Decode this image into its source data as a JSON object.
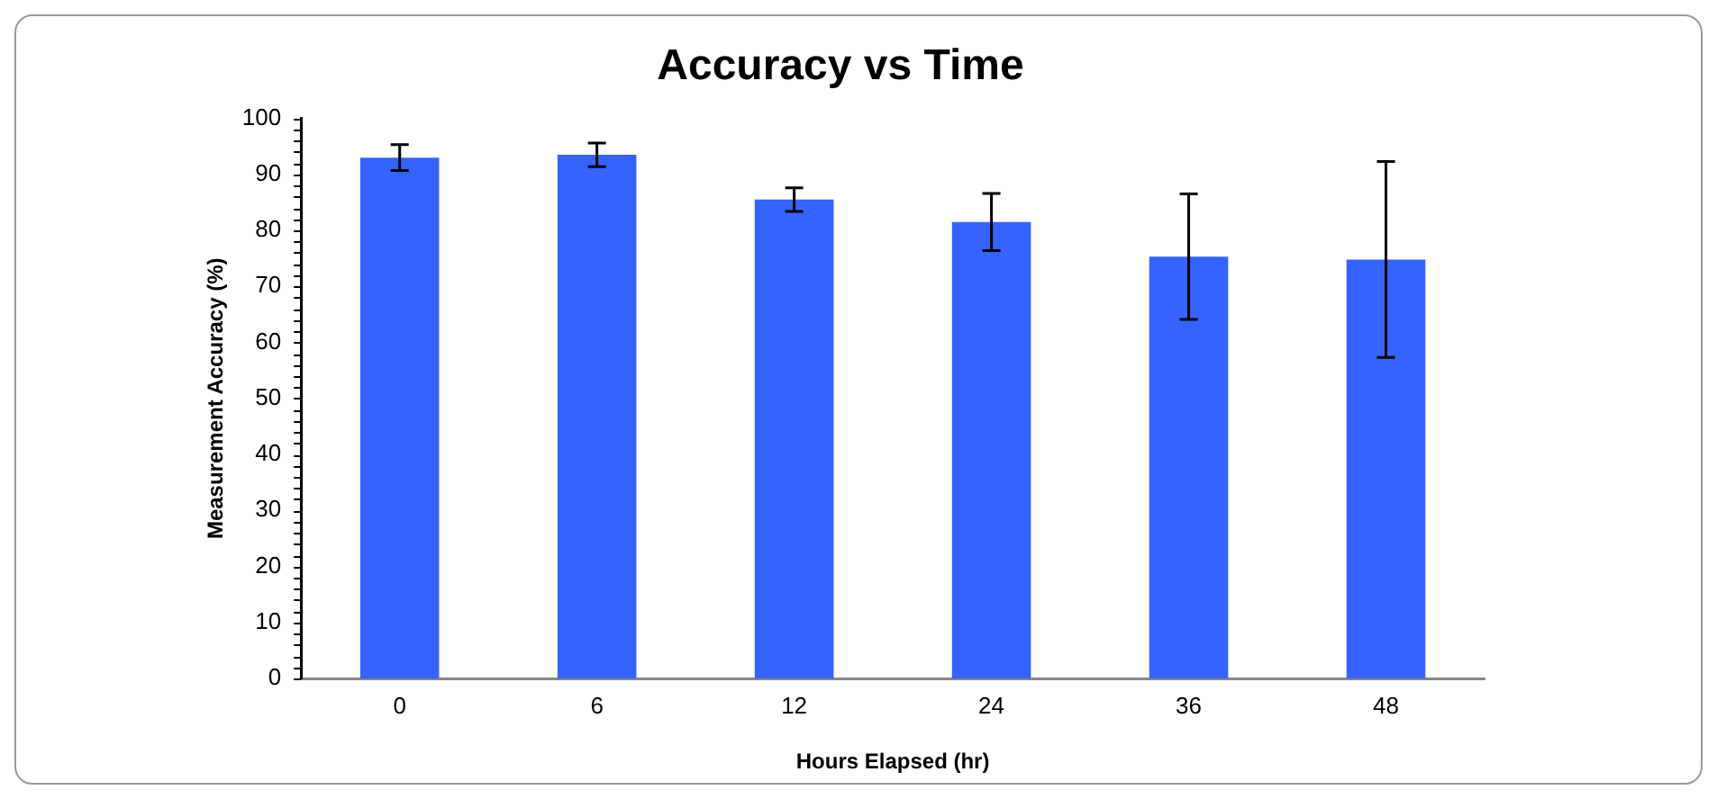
{
  "chart_data": {
    "type": "bar",
    "title": "Accuracy vs Time",
    "xlabel": "Hours Elapsed (hr)",
    "ylabel": "Measurement Accuracy (%)",
    "categories": [
      "0",
      "6",
      "12",
      "24",
      "36",
      "48"
    ],
    "values": [
      93,
      93.5,
      85.5,
      81.5,
      75.3,
      74.8
    ],
    "errors": [
      2.3,
      2.1,
      2.1,
      5.1,
      11.2,
      17.5
    ],
    "color": "#3662fe",
    "ylim": [
      0,
      100
    ],
    "yticks": [
      0,
      10,
      20,
      30,
      40,
      50,
      60,
      70,
      80,
      90,
      100
    ],
    "grid": false,
    "legend": false
  }
}
